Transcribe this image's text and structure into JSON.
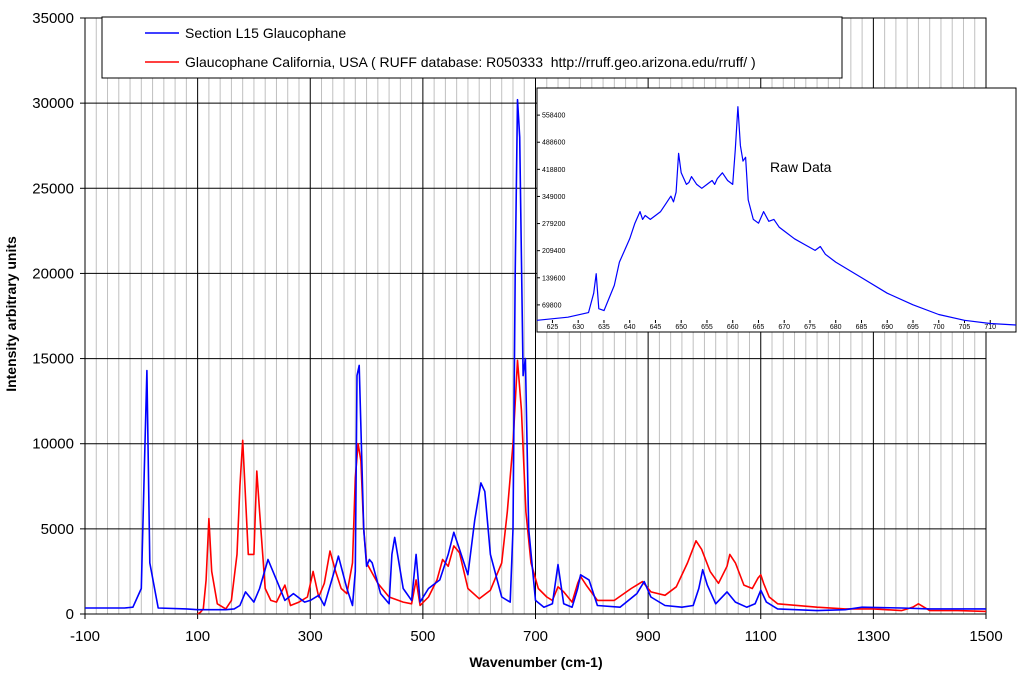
{
  "chart_data": [
    {
      "type": "line",
      "title": "",
      "xlabel": "Wavenumber (cm-1)",
      "ylabel": "Intensity arbitrary units",
      "xlim": [
        -100,
        1500
      ],
      "ylim": [
        0,
        35000
      ],
      "x_ticks": [
        -100,
        100,
        300,
        500,
        700,
        900,
        1100,
        1300,
        1500
      ],
      "y_ticks": [
        0,
        5000,
        10000,
        15000,
        20000,
        25000,
        30000,
        35000
      ],
      "x_tick_labels": [
        "-100",
        "100",
        "300",
        "500",
        "700",
        "900",
        "1100",
        "1300",
        "1500"
      ],
      "y_tick_labels": [
        "0",
        "5000",
        "10000",
        "15000",
        "20000",
        "25000",
        "30000",
        "35000"
      ],
      "grid": true,
      "legend_position": "top",
      "series": [
        {
          "name": "Section L15 Glaucophane",
          "color": "#0000ff",
          "x": [
            -100,
            -30,
            -15,
            0,
            5,
            10,
            15,
            30,
            80,
            100,
            150,
            165,
            175,
            185,
            200,
            210,
            225,
            240,
            255,
            270,
            290,
            300,
            315,
            325,
            340,
            350,
            365,
            375,
            380,
            383,
            387,
            395,
            400,
            405,
            410,
            425,
            440,
            445,
            450,
            465,
            480,
            488,
            495,
            510,
            530,
            545,
            555,
            565,
            580,
            592,
            603,
            610,
            620,
            640,
            655,
            660,
            664,
            668,
            672,
            678,
            682,
            688,
            700,
            715,
            730,
            740,
            750,
            765,
            775,
            780,
            795,
            810,
            850,
            880,
            893,
            905,
            930,
            960,
            980,
            990,
            997,
            1005,
            1020,
            1040,
            1055,
            1075,
            1090,
            1100,
            1110,
            1130,
            1200,
            1250,
            1280,
            1350,
            1400,
            1500
          ],
          "values": [
            350,
            350,
            400,
            1500,
            8000,
            14300,
            3000,
            350,
            300,
            250,
            250,
            300,
            500,
            1300,
            700,
            1500,
            3200,
            2000,
            800,
            1200,
            700,
            800,
            1100,
            500,
            2200,
            3400,
            1500,
            500,
            2500,
            14000,
            14600,
            5000,
            2800,
            3200,
            3000,
            1200,
            600,
            3500,
            4500,
            1500,
            800,
            3500,
            700,
            1500,
            2000,
            3500,
            4800,
            3800,
            2300,
            5500,
            7700,
            7200,
            3500,
            1000,
            700,
            5000,
            20000,
            30200,
            28000,
            14000,
            15000,
            5000,
            800,
            400,
            600,
            2900,
            600,
            400,
            1500,
            2300,
            2000,
            500,
            400,
            1200,
            1900,
            1000,
            500,
            400,
            500,
            1500,
            2600,
            1700,
            600,
            1300,
            700,
            400,
            600,
            1400,
            700,
            300,
            200,
            250,
            400,
            350,
            300,
            300
          ]
        },
        {
          "name": "Glaucophane California, USA ( RUFF database: R050333  http://rruff.geo.arizona.edu/rruff/ )",
          "color": "#ff0000",
          "x": [
            100,
            105,
            110,
            115,
            120,
            125,
            135,
            150,
            160,
            170,
            175,
            180,
            190,
            200,
            205,
            210,
            220,
            230,
            240,
            255,
            265,
            280,
            295,
            305,
            315,
            325,
            335,
            345,
            355,
            365,
            375,
            380,
            385,
            390,
            395,
            400,
            420,
            440,
            465,
            480,
            488,
            495,
            510,
            525,
            535,
            545,
            555,
            565,
            580,
            600,
            620,
            640,
            650,
            660,
            668,
            675,
            683,
            692,
            705,
            720,
            730,
            740,
            750,
            765,
            775,
            780,
            790,
            810,
            840,
            870,
            890,
            905,
            930,
            950,
            970,
            985,
            995,
            1010,
            1025,
            1040,
            1045,
            1055,
            1070,
            1085,
            1095,
            1100,
            1105,
            1115,
            1130,
            1200,
            1250,
            1300,
            1350,
            1370,
            1380,
            1400,
            1450,
            1500
          ],
          "values": [
            0,
            100,
            300,
            2000,
            5600,
            2500,
            600,
            300,
            800,
            3500,
            7500,
            10200,
            3500,
            3500,
            8400,
            6000,
            1500,
            800,
            700,
            1700,
            500,
            700,
            1000,
            2500,
            1000,
            1800,
            3700,
            2500,
            1500,
            1200,
            3000,
            8000,
            10000,
            9000,
            5000,
            3000,
            1800,
            1000,
            700,
            600,
            2000,
            500,
            1000,
            2000,
            3200,
            2800,
            4000,
            3600,
            1500,
            900,
            1400,
            3000,
            6000,
            10000,
            14900,
            12000,
            6000,
            3000,
            1500,
            1000,
            800,
            1600,
            1300,
            700,
            1800,
            2200,
            1700,
            800,
            800,
            1500,
            1900,
            1300,
            1100,
            1600,
            3000,
            4300,
            3800,
            2500,
            1800,
            2800,
            3500,
            3000,
            1700,
            1500,
            2100,
            2300,
            1800,
            1000,
            600,
            400,
            300,
            300,
            200,
            400,
            600,
            200,
            200,
            150
          ]
        }
      ]
    },
    {
      "type": "line",
      "title": "",
      "annotation": "Raw Data",
      "xlim": [
        622,
        715
      ],
      "ylim": [
        0,
        628200
      ],
      "x_tick_labels": [
        "625",
        "630",
        "635",
        "640",
        "645",
        "650",
        "655",
        "660",
        "665",
        "670",
        "675",
        "680",
        "685",
        "690",
        "695",
        "700",
        "705",
        "710"
      ],
      "y_tick_labels": [
        "69800",
        "139600",
        "209400",
        "279200",
        "349000",
        "418800",
        "488600",
        "558400"
      ],
      "grid": false,
      "series": [
        {
          "color": "#0000ff",
          "x": [
            622,
            628,
            632,
            633,
            633.5,
            634,
            635,
            637,
            638,
            639,
            640,
            641,
            642,
            642.5,
            643,
            644,
            645,
            646,
            647,
            648,
            648.5,
            649,
            649.5,
            650,
            651,
            651.5,
            652,
            653,
            654,
            655,
            656,
            656.5,
            657,
            658,
            659,
            660,
            660.5,
            661,
            661.5,
            662,
            662.5,
            663,
            664,
            665,
            666,
            667,
            668,
            669,
            670,
            672,
            674,
            676,
            677,
            678,
            680,
            685,
            690,
            695,
            700,
            705,
            710,
            715
          ],
          "values": [
            30000,
            38000,
            50000,
            100000,
            150000,
            60000,
            55000,
            120000,
            180000,
            210000,
            240000,
            280000,
            310000,
            290000,
            300000,
            290000,
            300000,
            310000,
            330000,
            350000,
            335000,
            360000,
            460000,
            410000,
            380000,
            385000,
            400000,
            380000,
            370000,
            380000,
            390000,
            380000,
            395000,
            410000,
            390000,
            380000,
            470000,
            580000,
            480000,
            440000,
            450000,
            340000,
            290000,
            280000,
            310000,
            285000,
            290000,
            270000,
            260000,
            240000,
            225000,
            210000,
            220000,
            200000,
            180000,
            140000,
            100000,
            70000,
            45000,
            30000,
            22000,
            18000
          ]
        }
      ]
    }
  ]
}
